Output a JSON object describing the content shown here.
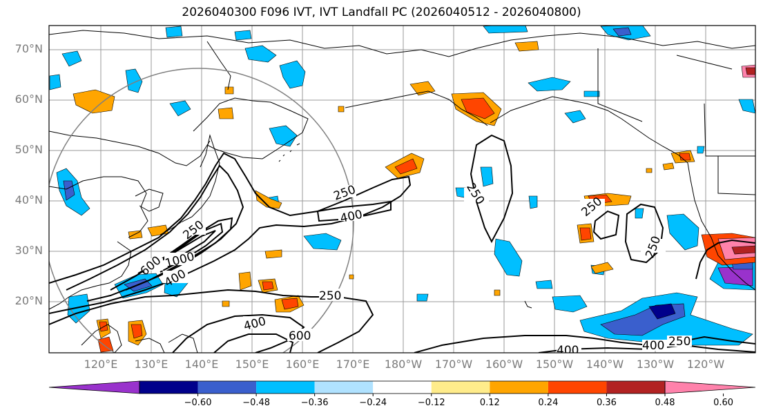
{
  "title": "2026040300 F096 IVT, IVT Landfall PC (2026040512 - 2026040800)",
  "lat_labels": [
    "70°N",
    "60°N",
    "50°N",
    "40°N",
    "30°N",
    "20°N"
  ],
  "lon_labels": [
    "120°E",
    "130°E",
    "140°E",
    "150°E",
    "160°E",
    "170°E",
    "180°W",
    "170°W",
    "160°W",
    "150°W",
    "140°W",
    "130°W",
    "120°W"
  ],
  "contour_labels": [
    "250",
    "400",
    "250",
    "600",
    "1000",
    "400",
    "250",
    "400",
    "600",
    "250",
    "250",
    "400",
    "400",
    "250",
    "250"
  ],
  "colorbar": {
    "colors": [
      "#9932cc",
      "#00008b",
      "#3a5fcd",
      "#00bfff",
      "#b0e2ff",
      "#ffffff",
      "#ffec8b",
      "#ffa500",
      "#ff4500",
      "#b22222",
      "#ff82ab"
    ],
    "tick_labels": [
      "−0.60",
      "−0.48",
      "−0.36",
      "−0.24",
      "−0.12",
      "0.12",
      "0.24",
      "0.36",
      "0.48",
      "0.60"
    ]
  }
}
